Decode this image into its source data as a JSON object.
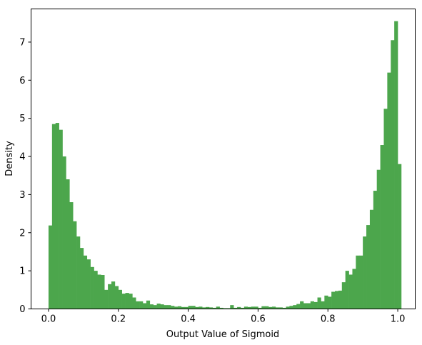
{
  "chart_data": {
    "type": "bar",
    "title": "",
    "xlabel": "Output Value of Sigmoid",
    "ylabel": "Density",
    "xlim": [
      -0.05,
      1.05
    ],
    "ylim": [
      0,
      7.87
    ],
    "bar_color": "#4ca64c",
    "grid": false,
    "legend": "none",
    "bin_start": 0.0,
    "bin_width": 0.01,
    "xticks": [
      0.0,
      0.2,
      0.4,
      0.6,
      0.8,
      1.0
    ],
    "xtick_labels": [
      "0.0",
      "0.2",
      "0.4",
      "0.6",
      "0.8",
      "1.0"
    ],
    "yticks": [
      0,
      1,
      2,
      3,
      4,
      5,
      6,
      7
    ],
    "ytick_labels": [
      "0",
      "1",
      "2",
      "3",
      "4",
      "5",
      "6",
      "7"
    ],
    "values": [
      2.19,
      4.85,
      4.88,
      4.7,
      4.0,
      3.4,
      2.8,
      2.3,
      1.9,
      1.6,
      1.4,
      1.3,
      1.1,
      1.0,
      0.9,
      0.89,
      0.5,
      0.65,
      0.72,
      0.6,
      0.5,
      0.4,
      0.42,
      0.4,
      0.3,
      0.2,
      0.2,
      0.15,
      0.22,
      0.12,
      0.1,
      0.14,
      0.12,
      0.1,
      0.1,
      0.08,
      0.06,
      0.07,
      0.05,
      0.05,
      0.08,
      0.08,
      0.05,
      0.06,
      0.04,
      0.05,
      0.04,
      0.03,
      0.06,
      0.03,
      0.02,
      0.02,
      0.1,
      0.03,
      0.05,
      0.03,
      0.06,
      0.05,
      0.06,
      0.06,
      0.03,
      0.07,
      0.07,
      0.05,
      0.06,
      0.04,
      0.04,
      0.03,
      0.06,
      0.08,
      0.1,
      0.13,
      0.2,
      0.15,
      0.15,
      0.2,
      0.18,
      0.3,
      0.2,
      0.35,
      0.32,
      0.45,
      0.47,
      0.48,
      0.7,
      1.0,
      0.9,
      1.05,
      1.4,
      1.4,
      1.9,
      2.2,
      2.6,
      3.1,
      3.65,
      4.3,
      5.25,
      6.2,
      7.05,
      7.55,
      3.8
    ]
  }
}
